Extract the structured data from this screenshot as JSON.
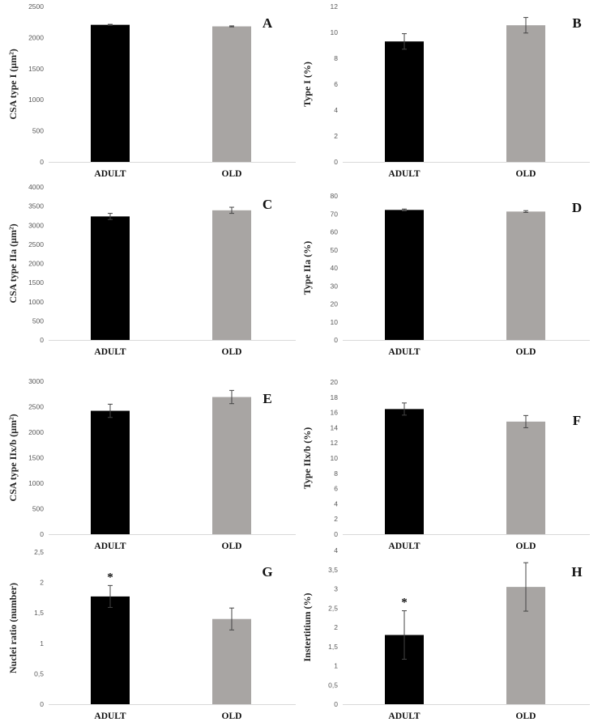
{
  "colors": {
    "adult": "#000000",
    "old": "#a8a5a3",
    "axis": "#d9d9d9",
    "error": "#444444"
  },
  "chart_data": [
    {
      "panel": "A",
      "type": "bar",
      "ylabel": "CSA type I (µm²)",
      "ylim": [
        0,
        2500
      ],
      "yticks": [
        "0",
        "500",
        "1000",
        "1500",
        "2000",
        "2500"
      ],
      "yticks_values": [
        0,
        500,
        1000,
        1500,
        2000,
        2500
      ],
      "categories": [
        "ADULT",
        "OLD"
      ],
      "values": [
        2205,
        2180
      ],
      "errors": [
        8,
        8
      ],
      "significance": [
        "",
        ""
      ]
    },
    {
      "panel": "B",
      "type": "bar",
      "ylabel": "Type I (%)",
      "ylim": [
        0,
        12
      ],
      "yticks": [
        "0",
        "2",
        "4",
        "6",
        "8",
        "10",
        "12"
      ],
      "yticks_values": [
        0,
        2,
        4,
        6,
        8,
        10,
        12
      ],
      "categories": [
        "ADULT",
        "OLD"
      ],
      "values": [
        9.3,
        10.55
      ],
      "errors": [
        0.6,
        0.6
      ],
      "significance": [
        "",
        ""
      ]
    },
    {
      "panel": "C",
      "type": "bar",
      "ylabel": "CSA type IIa (µm²)",
      "ylim": [
        0,
        4000
      ],
      "yticks": [
        "0",
        "500",
        "1000",
        "1500",
        "2000",
        "2500",
        "3000",
        "3500",
        "4000"
      ],
      "yticks_values": [
        0,
        500,
        1000,
        1500,
        2000,
        2500,
        3000,
        3500,
        4000
      ],
      "categories": [
        "ADULT",
        "OLD"
      ],
      "values": [
        3230,
        3390
      ],
      "errors": [
        80,
        80
      ],
      "significance": [
        "",
        ""
      ]
    },
    {
      "panel": "D",
      "type": "bar",
      "ylabel": "Type IIa (%)",
      "ylim": [
        0,
        80
      ],
      "yticks": [
        "0",
        "10",
        "20",
        "30",
        "40",
        "50",
        "60",
        "70",
        "80"
      ],
      "yticks_values": [
        0,
        10,
        20,
        30,
        40,
        50,
        60,
        70,
        80
      ],
      "categories": [
        "ADULT",
        "OLD"
      ],
      "values": [
        72.2,
        71.3
      ],
      "errors": [
        0.5,
        0.5
      ],
      "significance": [
        "",
        ""
      ]
    },
    {
      "panel": "E",
      "type": "bar",
      "ylabel": "CSA type IIx/b (µm²)",
      "ylim": [
        0,
        3000
      ],
      "yticks": [
        "0",
        "500",
        "1000",
        "1500",
        "2000",
        "2500",
        "3000"
      ],
      "yticks_values": [
        0,
        500,
        1000,
        1500,
        2000,
        2500,
        3000
      ],
      "categories": [
        "ADULT",
        "OLD"
      ],
      "values": [
        2420,
        2690
      ],
      "errors": [
        130,
        130
      ],
      "significance": [
        "",
        ""
      ]
    },
    {
      "panel": "F",
      "type": "bar",
      "ylabel": "Type IIx/b (%)",
      "ylim": [
        0,
        20
      ],
      "yticks": [
        "0",
        "2",
        "4",
        "6",
        "8",
        "10",
        "12",
        "14",
        "16",
        "18",
        "20"
      ],
      "yticks_values": [
        0,
        2,
        4,
        6,
        8,
        10,
        12,
        14,
        16,
        18,
        20
      ],
      "categories": [
        "ADULT",
        "OLD"
      ],
      "values": [
        16.45,
        14.8
      ],
      "errors": [
        0.8,
        0.8
      ],
      "significance": [
        "",
        ""
      ]
    },
    {
      "panel": "G",
      "type": "bar",
      "ylabel": "Nuclei ratio (number)",
      "ylim": [
        0,
        2.5
      ],
      "yticks": [
        "0",
        "0,5",
        "1",
        "1,5",
        "2",
        "2,5"
      ],
      "yticks_values": [
        0,
        0.5,
        1,
        1.5,
        2,
        2.5
      ],
      "categories": [
        "ADULT",
        "OLD"
      ],
      "values": [
        1.77,
        1.4
      ],
      "errors": [
        0.18,
        0.18
      ],
      "significance": [
        "*",
        ""
      ]
    },
    {
      "panel": "H",
      "type": "bar",
      "ylabel": "Instertitium (%)",
      "ylim": [
        0,
        4
      ],
      "yticks": [
        "0",
        "0,5",
        "1",
        "1,5",
        "2",
        "2,5",
        "3",
        "3,5",
        "4"
      ],
      "yticks_values": [
        0,
        0.5,
        1,
        1.5,
        2,
        2.5,
        3,
        3.5,
        4
      ],
      "categories": [
        "ADULT",
        "OLD"
      ],
      "values": [
        1.8,
        3.05
      ],
      "errors": [
        0.63,
        0.63
      ],
      "significance": [
        "*",
        ""
      ]
    }
  ]
}
